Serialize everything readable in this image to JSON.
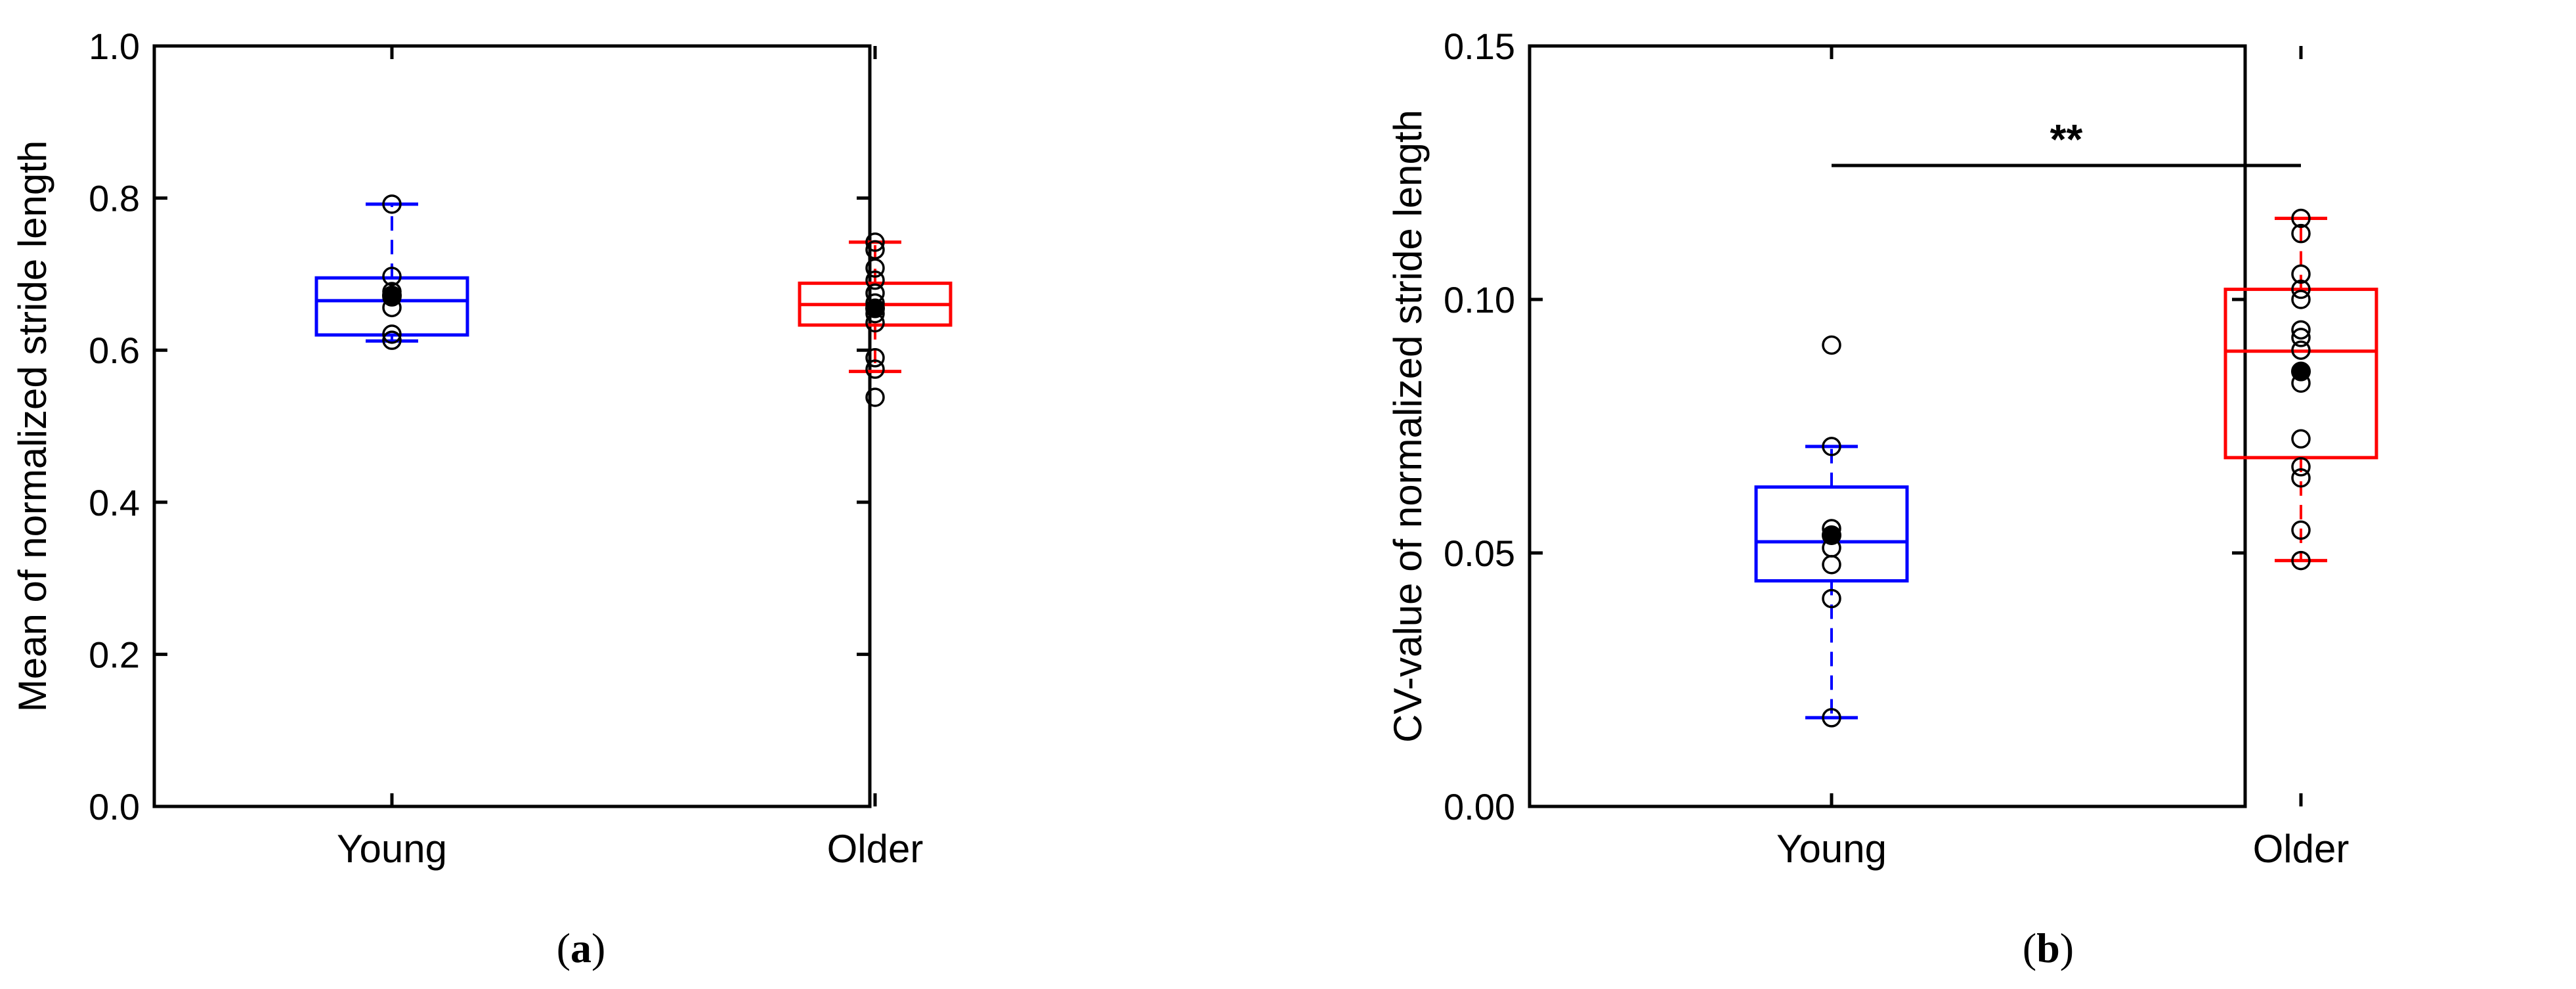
{
  "chart_data": [
    {
      "type": "box",
      "panel_label": "a",
      "ylabel": "Mean of normalized stride length",
      "ylim": [
        0,
        1.0
      ],
      "yticks": [
        "0.0",
        "0.2",
        "0.4",
        "0.6",
        "0.8",
        "1.0"
      ],
      "ytick_values": [
        0,
        0.2,
        0.4,
        0.6,
        0.8,
        1.0
      ],
      "categories": [
        "Young",
        "Older"
      ],
      "series": [
        {
          "color": "#0000ff",
          "whisker_low": 0.612,
          "q1": 0.62,
          "median": 0.665,
          "q3": 0.695,
          "whisker_high": 0.792,
          "mean": 0.672,
          "points": [
            0.792,
            0.697,
            0.677,
            0.67,
            0.656,
            0.621,
            0.613
          ]
        },
        {
          "color": "#ff0000",
          "whisker_low": 0.572,
          "q1": 0.633,
          "median": 0.66,
          "q3": 0.688,
          "whisker_high": 0.742,
          "mean": 0.655,
          "points": [
            0.742,
            0.732,
            0.708,
            0.692,
            0.675,
            0.662,
            0.648,
            0.636,
            0.59,
            0.575,
            0.538
          ]
        }
      ],
      "significance": ""
    },
    {
      "type": "box",
      "panel_label": "b",
      "ylabel": "CV-value of normalized stride length",
      "ylim": [
        0,
        0.15
      ],
      "yticks": [
        "0.00",
        "0.05",
        "0.10",
        "0.15"
      ],
      "ytick_values": [
        0,
        0.05,
        0.1,
        0.15
      ],
      "categories": [
        "Young",
        "Older"
      ],
      "series": [
        {
          "color": "#0000ff",
          "whisker_low": 0.0175,
          "q1": 0.0445,
          "median": 0.0522,
          "q3": 0.063,
          "whisker_high": 0.071,
          "mean": 0.0535,
          "points": [
            0.091,
            0.071,
            0.0548,
            0.0535,
            0.051,
            0.0477,
            0.041,
            0.0175
          ]
        },
        {
          "color": "#ff0000",
          "whisker_low": 0.0485,
          "q1": 0.0688,
          "median": 0.0898,
          "q3": 0.102,
          "whisker_high": 0.116,
          "mean": 0.0858,
          "points": [
            0.116,
            0.113,
            0.105,
            0.102,
            0.1,
            0.094,
            0.0925,
            0.09,
            0.0858,
            0.0835,
            0.0725,
            0.067,
            0.0648,
            0.0545,
            0.0485
          ]
        }
      ],
      "significance": "**"
    }
  ]
}
